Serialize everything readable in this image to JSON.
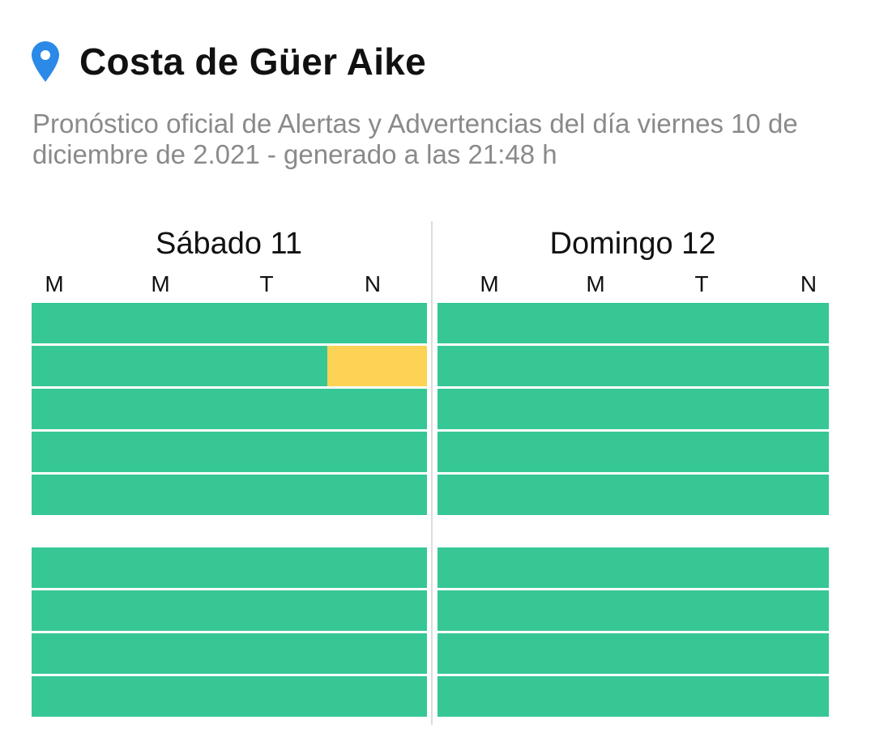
{
  "location": {
    "icon": "map-pin-icon",
    "title": "Costa de Güer Aike"
  },
  "subtitle": "Pronóstico oficial de Alertas y Advertencias del día viernes 10 de diciembre de 2.021 - generado a las 21:48 h",
  "colors": {
    "green": "#37c795",
    "yellow": "#fdd355",
    "pin": "#2b8ae8"
  },
  "days": [
    {
      "title": "Sábado 11",
      "periods": [
        "M",
        "M",
        "T",
        "N"
      ],
      "groups": [
        [
          [
            "green",
            "green",
            "green",
            "green"
          ],
          [
            "green",
            "green",
            "green",
            "yellow"
          ],
          [
            "green",
            "green",
            "green",
            "green"
          ],
          [
            "green",
            "green",
            "green",
            "green"
          ],
          [
            "green",
            "green",
            "green",
            "green"
          ]
        ],
        [
          [
            "green",
            "green",
            "green",
            "green"
          ],
          [
            "green",
            "green",
            "green",
            "green"
          ],
          [
            "green",
            "green",
            "green",
            "green"
          ],
          [
            "green",
            "green",
            "green",
            "green"
          ]
        ]
      ]
    },
    {
      "title": "Domingo 12",
      "periods": [
        "M",
        "M",
        "T",
        "N"
      ],
      "groups": [
        [
          [
            "green",
            "green",
            "green",
            "green"
          ],
          [
            "green",
            "green",
            "green",
            "green"
          ],
          [
            "green",
            "green",
            "green",
            "green"
          ],
          [
            "green",
            "green",
            "green",
            "green"
          ],
          [
            "green",
            "green",
            "green",
            "green"
          ]
        ],
        [
          [
            "green",
            "green",
            "green",
            "green"
          ],
          [
            "green",
            "green",
            "green",
            "green"
          ],
          [
            "green",
            "green",
            "green",
            "green"
          ],
          [
            "green",
            "green",
            "green",
            "green"
          ]
        ]
      ]
    }
  ]
}
